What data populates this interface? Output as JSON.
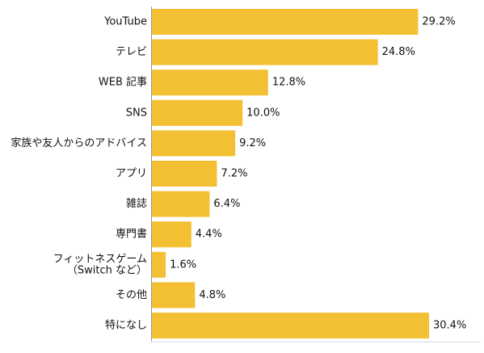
{
  "chart_data": {
    "type": "bar",
    "orientation": "horizontal",
    "categories": [
      "YouTube",
      "テレビ",
      "WEB 記事",
      "SNS",
      "家族や友人からのアドバイス",
      "アプリ",
      "雑誌",
      "専門書",
      [
        "フィットネスゲーム",
        "（Switch など）"
      ],
      "その他",
      "特になし"
    ],
    "values": [
      29.2,
      24.8,
      12.8,
      10.0,
      9.2,
      7.2,
      6.4,
      4.4,
      1.6,
      4.8,
      30.4
    ],
    "value_labels": [
      "29.2%",
      "24.8%",
      "12.8%",
      "10.0%",
      "9.2%",
      "7.2%",
      "6.4%",
      "4.4%",
      "1.6%",
      "4.8%",
      "30.4%"
    ],
    "unit": "%",
    "xlim": [
      0,
      30.4
    ],
    "title": "",
    "xlabel": "",
    "ylabel": "",
    "grid": false,
    "legend": "none",
    "bar_color": "#f4c033",
    "axis_color": "#999999",
    "text_color": "#111111"
  }
}
